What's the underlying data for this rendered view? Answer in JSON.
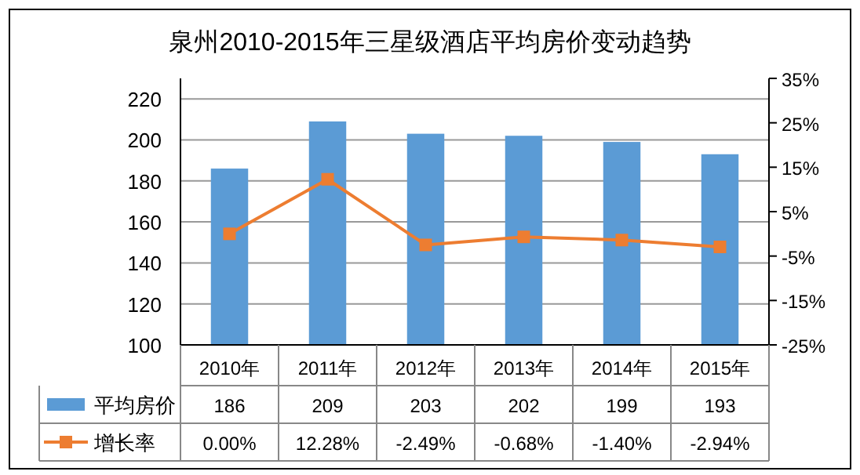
{
  "chart_data": {
    "type": "bar",
    "title": "泉州2010-2015年三星级酒店平均房价变动趋势",
    "categories": [
      "2010年",
      "2011年",
      "2012年",
      "2013年",
      "2014年",
      "2015年"
    ],
    "series": [
      {
        "name": "平均房价",
        "color": "#5b9bd5",
        "values": [
          186,
          209,
          203,
          202,
          199,
          193
        ]
      },
      {
        "name": "增长率",
        "type": "line",
        "axis": "y2",
        "color": "#ed7d31",
        "marker": "square",
        "values": [
          0.0,
          12.28,
          -2.49,
          -0.68,
          -1.4,
          -2.94
        ],
        "value_labels": [
          "0.00%",
          "12.28%",
          "-2.49%",
          "-0.68%",
          "-1.40%",
          "-2.94%"
        ]
      }
    ],
    "ylim": [
      100,
      230
    ],
    "yticks": [
      100,
      120,
      140,
      160,
      180,
      200,
      220
    ],
    "y2lim": [
      -25,
      35
    ],
    "y2ticks": [
      {
        "value": -25,
        "label": "-25%"
      },
      {
        "value": -15,
        "label": "-15%"
      },
      {
        "value": -5,
        "label": "-5%"
      },
      {
        "value": 5,
        "label": "5%"
      },
      {
        "value": 15,
        "label": "15%"
      },
      {
        "value": 25,
        "label": "25%"
      },
      {
        "value": 35,
        "label": "35%"
      }
    ],
    "grid": "y",
    "data_labels": true,
    "legend": "bottom"
  }
}
